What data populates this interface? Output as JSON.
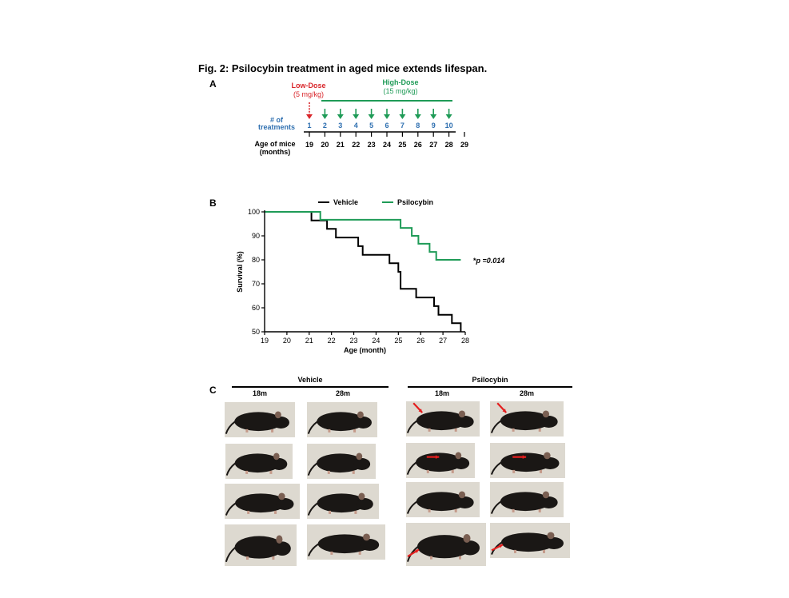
{
  "figure": {
    "title": "Fig. 2: Psilocybin treatment in aged mice extends lifespan."
  },
  "panel_a": {
    "letter": "A",
    "low_dose_label": "Low-Dose",
    "low_dose_amount": "(5 mg/kg)",
    "high_dose_label": "High-Dose",
    "high_dose_amount": "(15 mg/kg)",
    "treatments_label_1": "# of",
    "treatments_label_2": "treatments",
    "treatment_numbers": [
      "1",
      "2",
      "3",
      "4",
      "5",
      "6",
      "7",
      "8",
      "9",
      "10"
    ],
    "age_label_1": "Age of mice",
    "age_label_2": "(months)",
    "ages": [
      "19",
      "20",
      "21",
      "22",
      "23",
      "24",
      "25",
      "26",
      "27",
      "28",
      "29"
    ],
    "colors": {
      "low": "#d9262b",
      "high": "#1f9b57",
      "treat": "#2e6fb0"
    }
  },
  "panel_b": {
    "letter": "B",
    "chart_data": {
      "type": "line",
      "xlabel": "Age (month)",
      "ylabel": "Survival (%)",
      "xlim": [
        19,
        28
      ],
      "ylim": [
        50,
        100
      ],
      "xticks": [
        "19",
        "20",
        "21",
        "22",
        "23",
        "24",
        "25",
        "26",
        "27",
        "28"
      ],
      "yticks": [
        "50",
        "60",
        "70",
        "80",
        "90",
        "100"
      ],
      "legend_position": "top",
      "annotation": "p =0.014",
      "annotation_star": "*",
      "series": [
        {
          "name": "Vehicle",
          "color": "#000000",
          "step_x": [
            19,
            21.1,
            21.1,
            21.8,
            21.8,
            22.2,
            22.2,
            23.2,
            23.2,
            23.4,
            23.4,
            24.6,
            24.6,
            25.0,
            25.0,
            25.1,
            25.1,
            25.8,
            25.8,
            26.6,
            26.6,
            26.8,
            26.8,
            27.4,
            27.4,
            27.8,
            27.8
          ],
          "step_y": [
            100,
            100,
            96.4,
            96.4,
            92.9,
            92.9,
            89.3,
            89.3,
            85.7,
            85.7,
            82.1,
            82.1,
            78.6,
            78.6,
            75,
            75,
            67.9,
            67.9,
            64.3,
            64.3,
            60.7,
            60.7,
            57.1,
            57.1,
            53.6,
            53.6,
            50
          ]
        },
        {
          "name": "Psilocybin",
          "color": "#1f9b57",
          "step_x": [
            19,
            21.5,
            21.5,
            25.1,
            25.1,
            25.6,
            25.6,
            25.9,
            25.9,
            26.4,
            26.4,
            26.7,
            26.7,
            27.8
          ],
          "step_y": [
            100,
            100,
            96.7,
            96.7,
            93.3,
            93.3,
            90,
            90,
            86.7,
            86.7,
            83.3,
            83.3,
            80,
            80
          ]
        }
      ]
    }
  },
  "panel_c": {
    "letter": "C",
    "vehicle_label": "Vehicle",
    "psilocybin_label": "Psilocybin",
    "col_18m": "18m",
    "col_28m": "28m",
    "arrow_color": "#e41e1e"
  }
}
